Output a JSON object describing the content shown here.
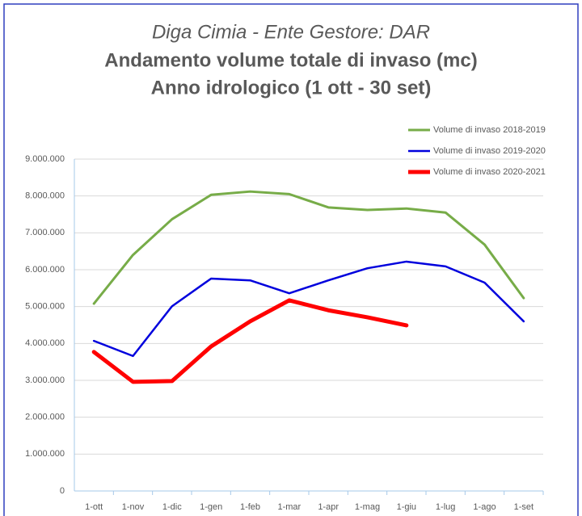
{
  "chart_data": {
    "type": "line",
    "title": "Diga Cimia - Ente Gestore: DAR",
    "subtitle": [
      "Andamento volume totale di invaso (mc)",
      "Anno idrologico (1 ott - 30 set)"
    ],
    "categories": [
      "1-ott",
      "1-nov",
      "1-dic",
      "1-gen",
      "1-feb",
      "1-mar",
      "1-apr",
      "1-mag",
      "1-giu",
      "1-lug",
      "1-ago",
      "1-set"
    ],
    "series": [
      {
        "name": "Volume di invaso 2018-2019",
        "color": "#77ac48",
        "width": 3,
        "values": [
          5080000,
          6400000,
          7370000,
          8030000,
          8120000,
          8050000,
          7690000,
          7620000,
          7660000,
          7550000,
          6680000,
          5230000
        ]
      },
      {
        "name": "Volume di invaso 2019-2020",
        "color": "#0000dd",
        "width": 2.5,
        "values": [
          4070000,
          3660000,
          5010000,
          5760000,
          5710000,
          5360000,
          5710000,
          6040000,
          6220000,
          6090000,
          5650000,
          4600000
        ]
      },
      {
        "name": "Volume di invaso 2020-2021",
        "color": "#ff0000",
        "width": 5,
        "values": [
          3770000,
          2960000,
          2980000,
          3920000,
          4600000,
          5170000,
          4900000,
          4710000,
          4490000,
          null,
          null,
          null
        ]
      }
    ],
    "ylim": [
      0,
      9000000
    ],
    "yticks": [
      0,
      {
        "value": 1000000,
        "label": "1.000.000"
      },
      {
        "value": 2000000,
        "label": "2.000.000"
      },
      {
        "value": 3000000,
        "label": "3.000.000"
      },
      {
        "value": 4000000,
        "label": "4.000.000"
      },
      {
        "value": 5000000,
        "label": "5.000.000"
      },
      {
        "value": 6000000,
        "label": "6.000.000"
      },
      {
        "value": 7000000,
        "label": "7.000.000"
      },
      {
        "value": 8000000,
        "label": "8.000.000"
      },
      {
        "value": 9000000,
        "label": "9.000.000"
      }
    ],
    "grid": true,
    "legend": "top-right"
  }
}
